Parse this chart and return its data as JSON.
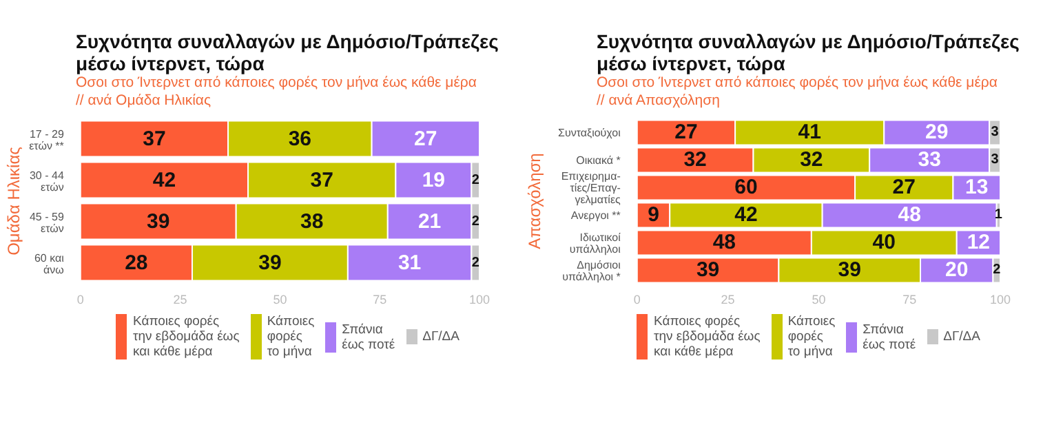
{
  "chart_data": [
    {
      "type": "bar",
      "orientation": "horizontal",
      "stacked": true,
      "title": "Συχνότητα συναλλαγών με Δημόσιο/Τράπεζες\nμέσω ίντερνετ, τώρα",
      "subtitle": "Οσοι στο Ίντερνετ από κάποιες φορές τον μήνα έως κάθε μέρα\n // ανά Ομάδα Ηλικίας",
      "ylabel": "Ομάδα Ηλικίας",
      "categories": [
        "17 - 29\nετών **",
        "30 - 44\nετών",
        "45 - 59\nετών",
        "60 και\nάνω"
      ],
      "series": [
        {
          "name": "Κάποιες φορές\nτην εβδομάδα έως\nκαι κάθε μέρα",
          "color": "#fd5c36",
          "values": [
            37,
            42,
            39,
            28
          ]
        },
        {
          "name": "Κάποιες\nφορές\nτο μήνα",
          "color": "#c8c800",
          "values": [
            36,
            37,
            38,
            39
          ]
        },
        {
          "name": "Σπάνια\nέως ποτέ",
          "color": "#a97cf6",
          "values": [
            27,
            19,
            21,
            31
          ]
        },
        {
          "name": "ΔΓ/ΔΑ",
          "color": "#c8c8c8",
          "values": [
            null,
            2,
            2,
            2
          ]
        }
      ],
      "xlim": [
        0,
        100
      ],
      "xticks": [
        0,
        25,
        50,
        75,
        100
      ],
      "data_labels": true,
      "legend": "bottom",
      "grid": false
    },
    {
      "type": "bar",
      "orientation": "horizontal",
      "stacked": true,
      "title": "Συχνότητα συναλλαγών με Δημόσιο/Τράπεζες\nμέσω ίντερνετ, τώρα",
      "subtitle": "Οσοι στο Ίντερνετ από κάποιες φορές τον μήνα έως κάθε μέρα\n // ανά Απασχόληση",
      "ylabel": "Απασχόληση",
      "categories": [
        "Συνταξιούχοι",
        "Οικιακά *",
        "Επιχειρημα-\nτίες/Επαγ-\nγελματίες",
        "Ανεργοι **",
        "Ιδιωτικοί\nυπάλληλοι",
        "Δημόσιοι\nυπάλληλοι *"
      ],
      "series": [
        {
          "name": "Κάποιες φορές\nτην εβδομάδα έως\nκαι κάθε μέρα",
          "color": "#fd5c36",
          "values": [
            27,
            32,
            60,
            9,
            48,
            39
          ]
        },
        {
          "name": "Κάποιες\nφορές\nτο μήνα",
          "color": "#c8c800",
          "values": [
            41,
            32,
            27,
            42,
            40,
            39
          ]
        },
        {
          "name": "Σπάνια\nέως ποτέ",
          "color": "#a97cf6",
          "values": [
            29,
            33,
            13,
            48,
            12,
            20
          ]
        },
        {
          "name": "ΔΓ/ΔΑ",
          "color": "#c8c8c8",
          "values": [
            3,
            3,
            null,
            1,
            null,
            2
          ]
        }
      ],
      "xlim": [
        0,
        100
      ],
      "xticks": [
        0,
        25,
        50,
        75,
        100
      ],
      "data_labels": true,
      "legend": "bottom",
      "grid": false
    }
  ]
}
